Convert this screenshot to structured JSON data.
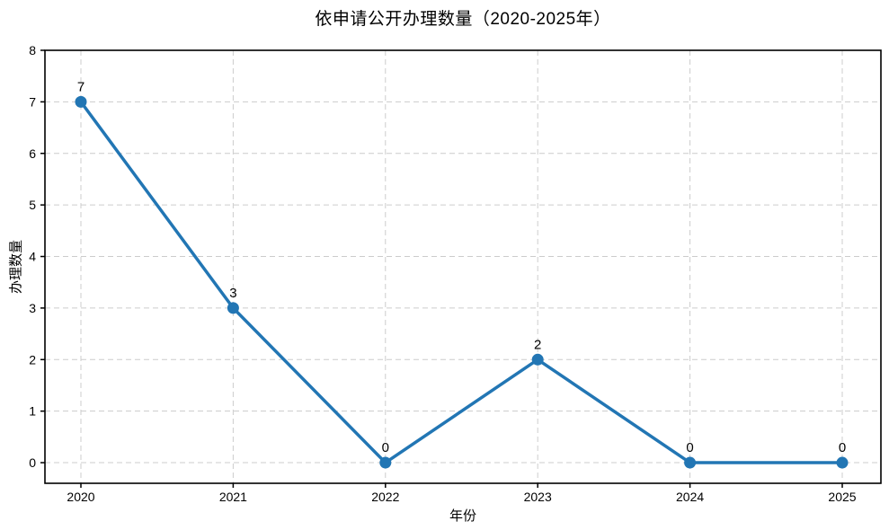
{
  "chart_data": {
    "type": "line",
    "title": "依申请公开办理数量（2020-2025年）",
    "xlabel": "年份",
    "ylabel": "办理数量",
    "categories": [
      "2020",
      "2021",
      "2022",
      "2023",
      "2024",
      "2025"
    ],
    "values": [
      7,
      3,
      0,
      2,
      0,
      0
    ],
    "point_labels": [
      "7",
      "3",
      "0",
      "2",
      "0",
      "0"
    ],
    "yticks": [
      0,
      1,
      2,
      3,
      4,
      5,
      6,
      7,
      8
    ],
    "ylim": [
      -0.4,
      8
    ],
    "grid": true,
    "legend": "none",
    "line_color": "#2276b4",
    "marker_color": "#2276b4",
    "grid_color": "#cccccc",
    "spine_color": "#000000",
    "text_color": "#000000",
    "background_color": "#ffffff"
  }
}
